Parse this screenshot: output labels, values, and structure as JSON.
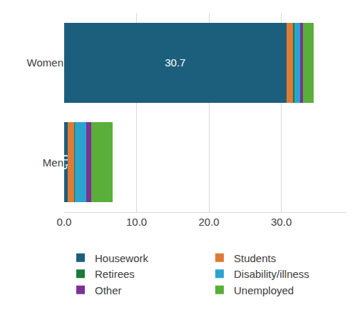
{
  "chart_data": {
    "type": "bar",
    "orientation": "horizontal",
    "stacked": true,
    "grid": true,
    "legend": "bottom",
    "categories": [
      "Women",
      "Men"
    ],
    "series": [
      {
        "name": "Housework",
        "color": "#1c5f7c",
        "values": [
          30.7,
          0.5
        ],
        "data_labels": true
      },
      {
        "name": "Students",
        "color": "#e07a38",
        "values": [
          1.0,
          0.9
        ]
      },
      {
        "name": "Retirees",
        "color": "#1d7a3a",
        "values": [
          0.1,
          0.1
        ]
      },
      {
        "name": "Disability/illness",
        "color": "#2ba3cf",
        "values": [
          0.8,
          1.6
        ]
      },
      {
        "name": "Other",
        "color": "#7b3294",
        "values": [
          0.4,
          0.6
        ]
      },
      {
        "name": "Unemployed",
        "color": "#5aae3a",
        "values": [
          1.5,
          3.0
        ]
      }
    ],
    "xlim": [
      0,
      39
    ],
    "xticks": [
      {
        "value": 0,
        "label": "0.0"
      },
      {
        "value": 10,
        "label": "10.0"
      },
      {
        "value": 20,
        "label": "20.0"
      },
      {
        "value": 30,
        "label": "30.0"
      }
    ]
  }
}
